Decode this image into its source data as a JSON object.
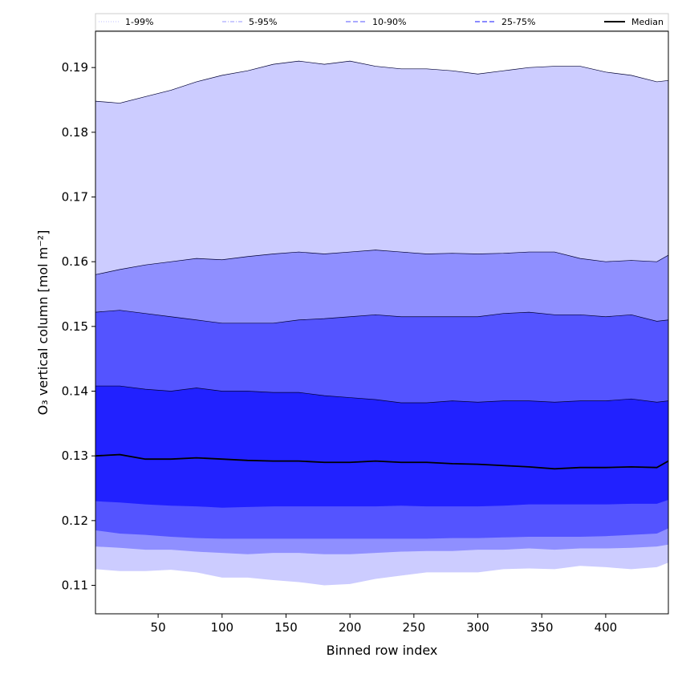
{
  "chart_data": {
    "type": "area",
    "xlabel": "Binned row index",
    "ylabel": "O₃ vertical column [mol m⁻²]",
    "xlim": [
      1,
      449
    ],
    "ylim": [
      0.1056,
      0.1956
    ],
    "x_ticks": [
      50,
      100,
      150,
      200,
      250,
      300,
      350,
      400
    ],
    "x_tick_labels": [
      "50",
      "100",
      "150",
      "200",
      "250",
      "300",
      "350",
      "400"
    ],
    "y_ticks": [
      0.11,
      0.12,
      0.13,
      0.14,
      0.15,
      0.16,
      0.17,
      0.18,
      0.19
    ],
    "y_tick_labels": [
      "0.11",
      "0.12",
      "0.13",
      "0.14",
      "0.15",
      "0.16",
      "0.17",
      "0.18",
      "0.19"
    ],
    "legend_position": "top",
    "x": [
      1,
      20,
      40,
      60,
      80,
      100,
      120,
      140,
      160,
      180,
      200,
      220,
      240,
      260,
      280,
      300,
      320,
      340,
      360,
      380,
      400,
      420,
      440,
      449
    ],
    "series": [
      {
        "name": "1-99%",
        "color": "#ccccff",
        "style": "dotted",
        "lower": [
          0.1125,
          0.1122,
          0.1122,
          0.1124,
          0.112,
          0.1112,
          0.1112,
          0.1108,
          0.1105,
          0.11,
          0.1102,
          0.111,
          0.1115,
          0.112,
          0.112,
          0.112,
          0.1125,
          0.1126,
          0.1125,
          0.113,
          0.1128,
          0.1125,
          0.1128,
          0.1135
        ],
        "upper": [
          0.1848,
          0.1845,
          0.1855,
          0.1865,
          0.1878,
          0.1888,
          0.1895,
          0.1905,
          0.191,
          0.1905,
          0.191,
          0.1902,
          0.1898,
          0.1898,
          0.1895,
          0.189,
          0.1895,
          0.19,
          0.1902,
          0.1902,
          0.1893,
          0.1888,
          0.1878,
          0.188
        ]
      },
      {
        "name": "5-95%",
        "color": "#8f8fff",
        "style": "dashdot",
        "lower": [
          0.116,
          0.1158,
          0.1155,
          0.1155,
          0.1152,
          0.115,
          0.1148,
          0.115,
          0.115,
          0.1148,
          0.1148,
          0.115,
          0.1152,
          0.1153,
          0.1153,
          0.1155,
          0.1155,
          0.1157,
          0.1155,
          0.1157,
          0.1157,
          0.1158,
          0.116,
          0.1163
        ],
        "upper": [
          0.158,
          0.1588,
          0.1595,
          0.16,
          0.1605,
          0.1603,
          0.1608,
          0.1612,
          0.1615,
          0.1612,
          0.1615,
          0.1618,
          0.1615,
          0.1612,
          0.1613,
          0.1612,
          0.1613,
          0.1615,
          0.1615,
          0.1605,
          0.16,
          0.1602,
          0.16,
          0.161
        ]
      },
      {
        "name": "10-90%",
        "color": "#5454ff",
        "style": "dashed",
        "lower": [
          0.1185,
          0.118,
          0.1178,
          0.1175,
          0.1173,
          0.1172,
          0.1172,
          0.1172,
          0.1172,
          0.1172,
          0.1172,
          0.1172,
          0.1172,
          0.1172,
          0.1173,
          0.1173,
          0.1174,
          0.1175,
          0.1175,
          0.1175,
          0.1176,
          0.1178,
          0.118,
          0.1188
        ],
        "upper": [
          0.1522,
          0.1525,
          0.152,
          0.1515,
          0.151,
          0.1505,
          0.1505,
          0.1505,
          0.151,
          0.1512,
          0.1515,
          0.1518,
          0.1515,
          0.1515,
          0.1515,
          0.1515,
          0.152,
          0.1522,
          0.1518,
          0.1518,
          0.1515,
          0.1518,
          0.1508,
          0.151
        ]
      },
      {
        "name": "25-75%",
        "color": "#2121ff",
        "style": "dashed",
        "lower": [
          0.123,
          0.1228,
          0.1225,
          0.1223,
          0.1222,
          0.122,
          0.1221,
          0.1222,
          0.1222,
          0.1222,
          0.1222,
          0.1222,
          0.1223,
          0.1222,
          0.1222,
          0.1222,
          0.1223,
          0.1225,
          0.1225,
          0.1225,
          0.1225,
          0.1226,
          0.1226,
          0.1232
        ],
        "upper": [
          0.1408,
          0.1408,
          0.1403,
          0.14,
          0.1405,
          0.14,
          0.14,
          0.1398,
          0.1398,
          0.1393,
          0.139,
          0.1387,
          0.1382,
          0.1382,
          0.1385,
          0.1383,
          0.1385,
          0.1385,
          0.1383,
          0.1385,
          0.1385,
          0.1388,
          0.1383,
          0.1385
        ]
      },
      {
        "name": "Median",
        "color": "#000000",
        "style": "solid",
        "values": [
          0.13,
          0.1302,
          0.1295,
          0.1295,
          0.1297,
          0.1295,
          0.1293,
          0.1292,
          0.1292,
          0.129,
          0.129,
          0.1292,
          0.129,
          0.129,
          0.1288,
          0.1287,
          0.1285,
          0.1283,
          0.128,
          0.1282,
          0.1282,
          0.1283,
          0.1282,
          0.1292
        ]
      }
    ]
  }
}
